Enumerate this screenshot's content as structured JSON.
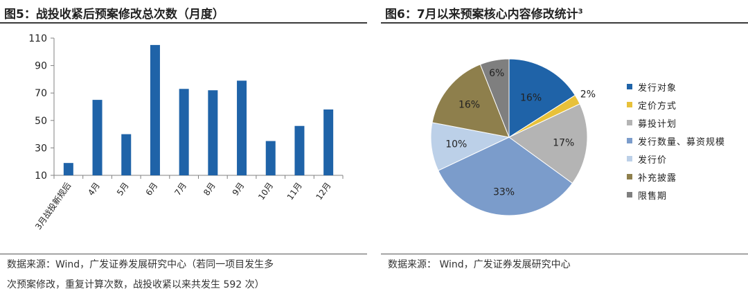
{
  "left": {
    "title": "图5：战投收紧后预案修改总次数（月度）",
    "source_line1": "数据来源：Wind，广发证券发展研究中心（若同一项目发生多",
    "source_line2": "次预案修改，重复计算次数，战投收紧以来共发生 592 次）"
  },
  "right": {
    "title_main": "图6：7月以来预案核心内容修改统计",
    "title_sup": "3",
    "source": "数据来源： Wind，广发证券发展研究中心"
  },
  "colors": {
    "bar": "#1f63a8",
    "axis": "#808080"
  },
  "chart_data": [
    {
      "type": "bar",
      "categories": [
        "3月战投新规后",
        "4月",
        "5月",
        "6月",
        "7月",
        "8月",
        "9月",
        "10月",
        "11月",
        "12月"
      ],
      "values": [
        19,
        65,
        40,
        105,
        73,
        72,
        79,
        35,
        46,
        58
      ],
      "yticks": [
        10,
        30,
        50,
        70,
        90,
        110
      ],
      "ylim": [
        10,
        110
      ],
      "grid": false,
      "title": "",
      "xlabel": "",
      "ylabel": ""
    },
    {
      "type": "pie",
      "slices": [
        {
          "name": "发行对象",
          "value": 16,
          "label": "16%",
          "color": "#1f63a8"
        },
        {
          "name": "定价方式",
          "value": 2,
          "label": "2%",
          "color": "#e8c13a"
        },
        {
          "name": "募投计划",
          "value": 17,
          "label": "17%",
          "color": "#b4b4b4"
        },
        {
          "name": "发行数量、募资规模",
          "value": 33,
          "label": "33%",
          "color": "#7b9ccb"
        },
        {
          "name": "发行价",
          "value": 10,
          "label": "10%",
          "color": "#bcd0e8"
        },
        {
          "name": "补充披露",
          "value": 16,
          "label": "16%",
          "color": "#8e7f4c"
        },
        {
          "name": "限售期",
          "value": 6,
          "label": "6%",
          "color": "#7f7f7f"
        }
      ],
      "legend_position": "right"
    }
  ]
}
